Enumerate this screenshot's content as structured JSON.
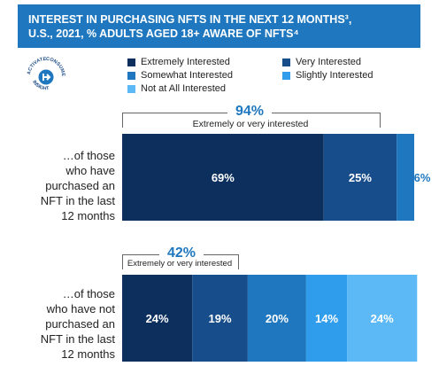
{
  "header": {
    "line1": "INTEREST IN PURCHASING NFTS IN THE NEXT 12 MONTHS³,",
    "line2": "U.S., 2021, % ADULTS AGED 18+ AWARE OF NFTS⁴"
  },
  "logo": {
    "text_top": "ACTIVATE",
    "text_right": "CONSUMER",
    "text_bottom": "INSIGHT"
  },
  "colors": {
    "extremely": "#0d2f5e",
    "very": "#174d8a",
    "somewhat": "#1f78bf",
    "slightly": "#2f9cec",
    "not_at_all": "#5cb9f5",
    "accent": "#1f78bf"
  },
  "chart_data": {
    "type": "bar",
    "orientation": "horizontal",
    "stacked": true,
    "legend": [
      "Extremely Interested",
      "Very Interested",
      "Somewhat Interested",
      "Slightly Interested",
      "Not at All Interested"
    ],
    "categories": [
      "…of those who have purchased an NFT in the last 12 months",
      "…of those who have not purchased an NFT in the last 12 months"
    ],
    "series": [
      {
        "name": "Extremely Interested",
        "values": [
          69,
          24
        ]
      },
      {
        "name": "Very Interested",
        "values": [
          25,
          19
        ]
      },
      {
        "name": "Somewhat Interested",
        "values": [
          6,
          20
        ]
      },
      {
        "name": "Slightly Interested",
        "values": [
          0,
          14
        ]
      },
      {
        "name": "Not at All Interested",
        "values": [
          0,
          24
        ]
      }
    ],
    "annotations": [
      {
        "value": "94%",
        "label": "Extremely or very interested"
      },
      {
        "value": "42%",
        "label": "Extremely or very interested"
      }
    ]
  }
}
